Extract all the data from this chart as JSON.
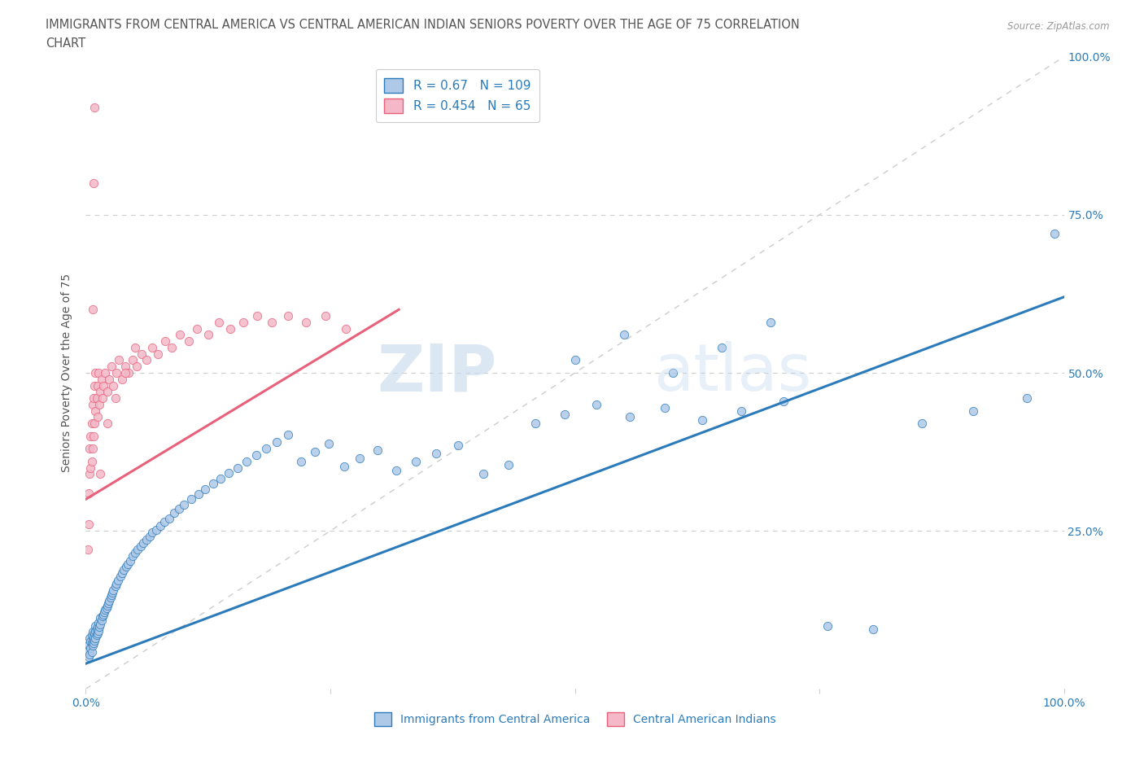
{
  "title": "IMMIGRANTS FROM CENTRAL AMERICA VS CENTRAL AMERICAN INDIAN SENIORS POVERTY OVER THE AGE OF 75 CORRELATION\nCHART",
  "source": "Source: ZipAtlas.com",
  "ylabel": "Seniors Poverty Over the Age of 75",
  "xlim": [
    0,
    1
  ],
  "ylim": [
    0,
    1
  ],
  "blue_color": "#aec8e8",
  "pink_color": "#f4b8c8",
  "blue_line_color": "#2b7bba",
  "pink_line_color": "#e8607a",
  "diagonal_color": "#cccccc",
  "R_blue": 0.67,
  "N_blue": 109,
  "R_pink": 0.454,
  "N_pink": 65,
  "legend_label_blue": "Immigrants from Central America",
  "legend_label_pink": "Central American Indians",
  "watermark_text": "ZIPatlas",
  "title_color": "#555555",
  "axis_label_color": "#555555",
  "tick_color": "#2b7bba",
  "blue_scatter_x": [
    0.002,
    0.003,
    0.003,
    0.004,
    0.004,
    0.005,
    0.005,
    0.006,
    0.006,
    0.006,
    0.007,
    0.007,
    0.007,
    0.008,
    0.008,
    0.009,
    0.009,
    0.01,
    0.01,
    0.01,
    0.011,
    0.011,
    0.012,
    0.012,
    0.013,
    0.013,
    0.014,
    0.015,
    0.015,
    0.016,
    0.017,
    0.018,
    0.019,
    0.02,
    0.021,
    0.022,
    0.023,
    0.024,
    0.025,
    0.026,
    0.027,
    0.028,
    0.03,
    0.031,
    0.033,
    0.035,
    0.037,
    0.039,
    0.041,
    0.043,
    0.045,
    0.048,
    0.05,
    0.053,
    0.056,
    0.059,
    0.062,
    0.065,
    0.068,
    0.072,
    0.076,
    0.08,
    0.085,
    0.09,
    0.095,
    0.1,
    0.108,
    0.115,
    0.122,
    0.13,
    0.138,
    0.146,
    0.155,
    0.164,
    0.174,
    0.184,
    0.195,
    0.207,
    0.22,
    0.234,
    0.248,
    0.264,
    0.28,
    0.298,
    0.317,
    0.337,
    0.358,
    0.381,
    0.406,
    0.432,
    0.46,
    0.49,
    0.522,
    0.556,
    0.592,
    0.63,
    0.67,
    0.713,
    0.758,
    0.805,
    0.855,
    0.907,
    0.962,
    0.5,
    0.55,
    0.6,
    0.65,
    0.7,
    0.99
  ],
  "blue_scatter_y": [
    0.06,
    0.05,
    0.07,
    0.055,
    0.08,
    0.065,
    0.075,
    0.058,
    0.072,
    0.085,
    0.068,
    0.078,
    0.09,
    0.072,
    0.082,
    0.076,
    0.088,
    0.08,
    0.092,
    0.1,
    0.085,
    0.095,
    0.088,
    0.098,
    0.092,
    0.105,
    0.098,
    0.102,
    0.112,
    0.108,
    0.115,
    0.118,
    0.122,
    0.125,
    0.128,
    0.132,
    0.136,
    0.14,
    0.144,
    0.148,
    0.152,
    0.156,
    0.162,
    0.166,
    0.172,
    0.178,
    0.183,
    0.188,
    0.193,
    0.198,
    0.203,
    0.21,
    0.215,
    0.22,
    0.226,
    0.231,
    0.236,
    0.241,
    0.247,
    0.252,
    0.258,
    0.264,
    0.27,
    0.278,
    0.285,
    0.292,
    0.3,
    0.308,
    0.316,
    0.325,
    0.333,
    0.342,
    0.35,
    0.36,
    0.37,
    0.38,
    0.391,
    0.402,
    0.36,
    0.375,
    0.388,
    0.352,
    0.365,
    0.378,
    0.345,
    0.36,
    0.372,
    0.385,
    0.34,
    0.355,
    0.42,
    0.435,
    0.45,
    0.43,
    0.445,
    0.425,
    0.44,
    0.455,
    0.1,
    0.095,
    0.42,
    0.44,
    0.46,
    0.52,
    0.56,
    0.5,
    0.54,
    0.58,
    0.72
  ],
  "pink_scatter_x": [
    0.002,
    0.003,
    0.003,
    0.004,
    0.004,
    0.005,
    0.005,
    0.006,
    0.006,
    0.007,
    0.007,
    0.008,
    0.008,
    0.009,
    0.009,
    0.01,
    0.01,
    0.011,
    0.012,
    0.012,
    0.013,
    0.014,
    0.015,
    0.016,
    0.017,
    0.018,
    0.02,
    0.022,
    0.024,
    0.026,
    0.028,
    0.031,
    0.034,
    0.037,
    0.04,
    0.044,
    0.048,
    0.052,
    0.057,
    0.062,
    0.068,
    0.074,
    0.081,
    0.088,
    0.096,
    0.105,
    0.114,
    0.125,
    0.136,
    0.148,
    0.161,
    0.175,
    0.19,
    0.207,
    0.225,
    0.245,
    0.266,
    0.015,
    0.022,
    0.03,
    0.04,
    0.05,
    0.007,
    0.008,
    0.009
  ],
  "pink_scatter_y": [
    0.22,
    0.26,
    0.31,
    0.34,
    0.38,
    0.35,
    0.4,
    0.36,
    0.42,
    0.38,
    0.45,
    0.4,
    0.46,
    0.42,
    0.48,
    0.44,
    0.5,
    0.46,
    0.43,
    0.48,
    0.5,
    0.45,
    0.47,
    0.49,
    0.46,
    0.48,
    0.5,
    0.47,
    0.49,
    0.51,
    0.48,
    0.5,
    0.52,
    0.49,
    0.51,
    0.5,
    0.52,
    0.51,
    0.53,
    0.52,
    0.54,
    0.53,
    0.55,
    0.54,
    0.56,
    0.55,
    0.57,
    0.56,
    0.58,
    0.57,
    0.58,
    0.59,
    0.58,
    0.59,
    0.58,
    0.59,
    0.57,
    0.34,
    0.42,
    0.46,
    0.5,
    0.54,
    0.6,
    0.8,
    0.92
  ],
  "blue_line_x": [
    0.0,
    1.0
  ],
  "blue_line_y": [
    0.04,
    0.62
  ],
  "pink_line_x": [
    0.0,
    0.32
  ],
  "pink_line_y": [
    0.3,
    0.6
  ]
}
